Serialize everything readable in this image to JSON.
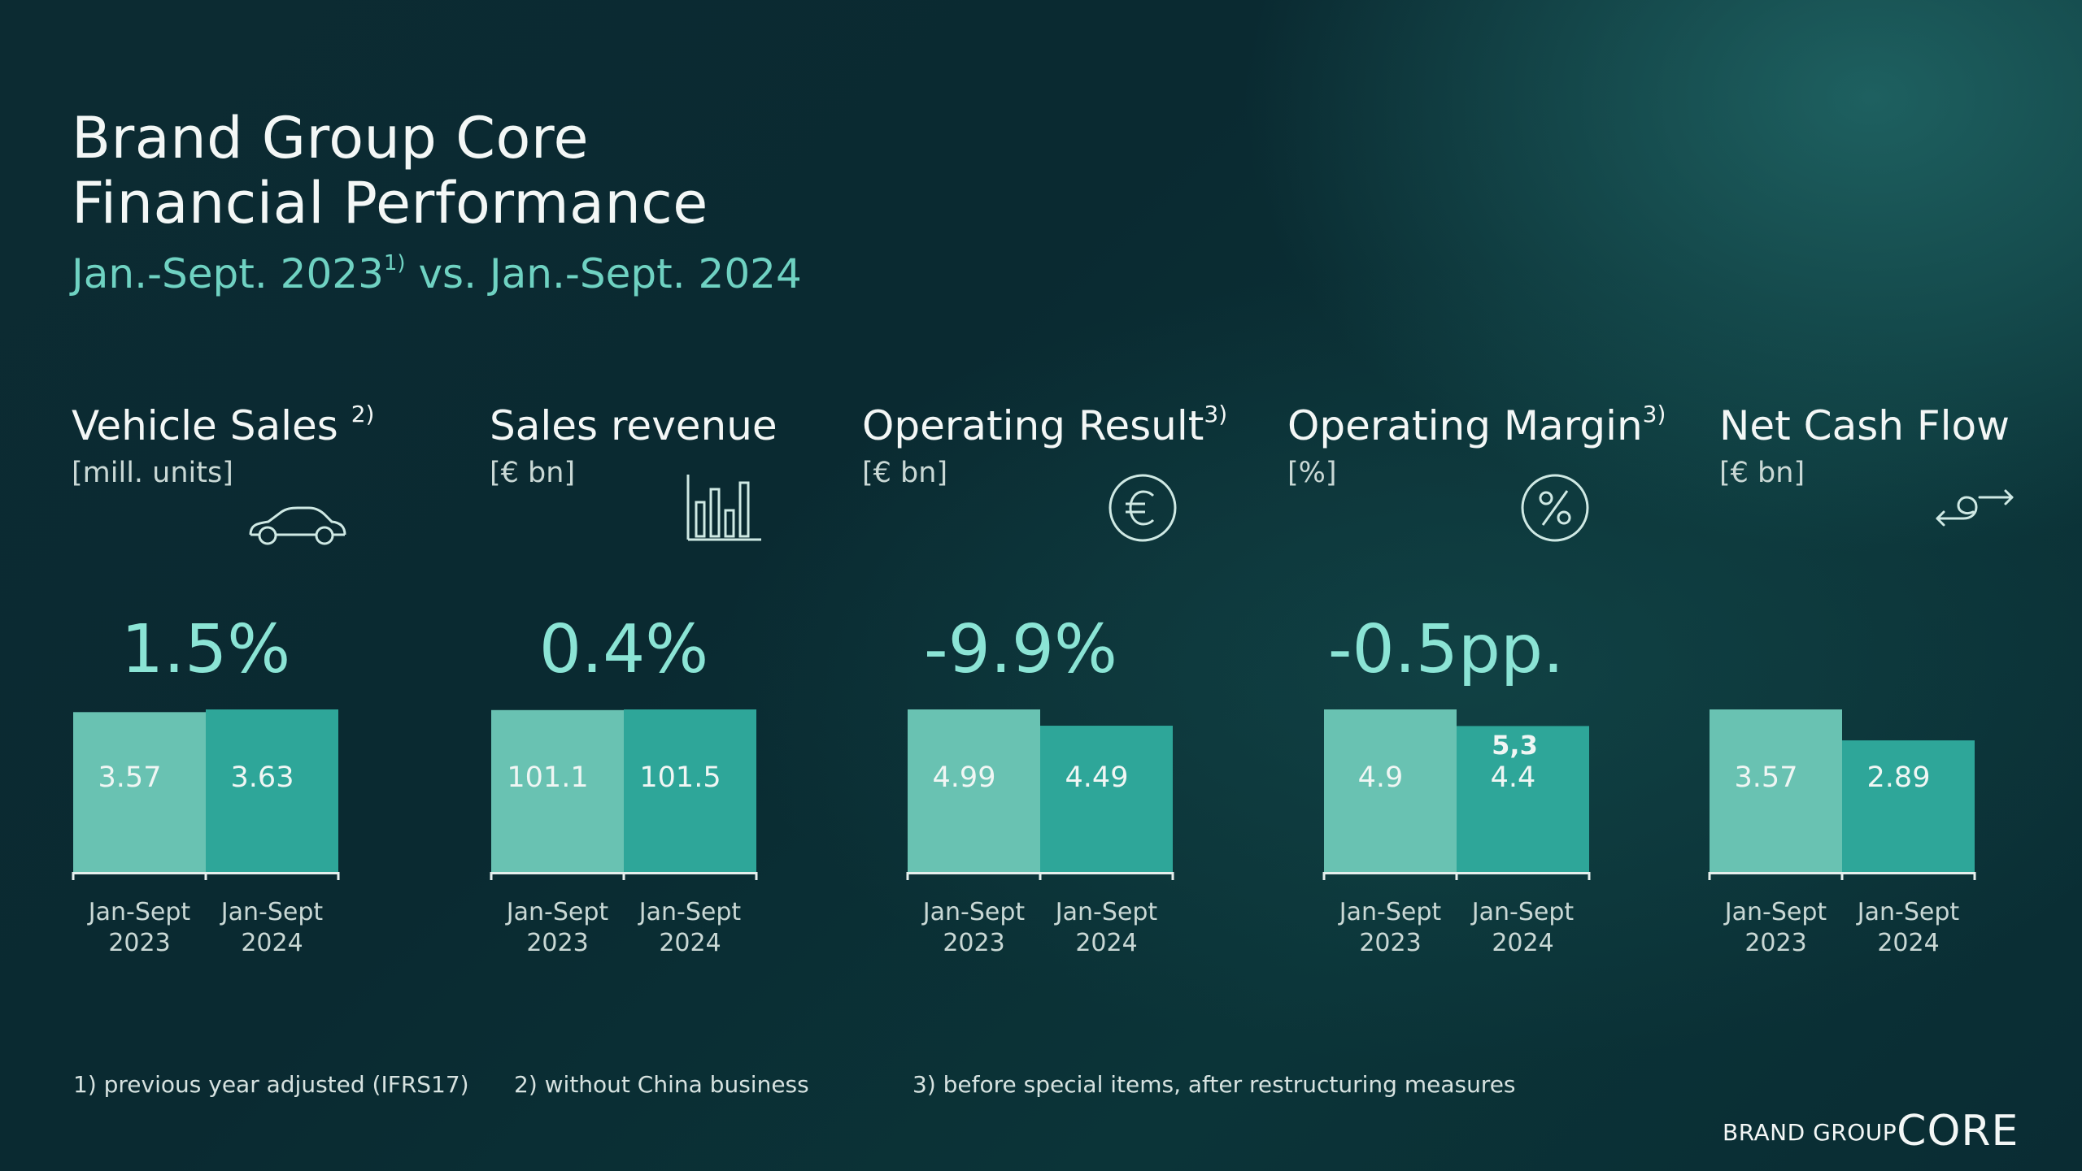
{
  "title": {
    "line1": "Brand Group Core",
    "line2": "Financial Performance",
    "period_a": "Jan.-Sept. 2023",
    "period_a_note": "1)",
    "period_b": " vs. Jan.-Sept. 2024"
  },
  "colors": {
    "bar_2023": "#69c2b2",
    "bar_2024": "#2ea699",
    "accent": "#8be4d5",
    "icon": "#cfe9e4"
  },
  "chart_data": [
    {
      "type": "bar",
      "title": "Vehicle Sales",
      "title_note": "2)",
      "unit": "[mill. units]",
      "icon": "car-icon",
      "change": "1.5%",
      "categories": [
        [
          "Jan-Sept",
          "2023"
        ],
        [
          "Jan-Sept",
          "2024"
        ]
      ],
      "values": [
        3.57,
        3.63
      ],
      "labels": [
        "3.57",
        "3.63"
      ]
    },
    {
      "type": "bar",
      "title": "Sales revenue",
      "title_note": "",
      "unit": "[€ bn]",
      "icon": "bar-chart-icon",
      "change": "0.4%",
      "categories": [
        [
          "Jan-Sept",
          "2023"
        ],
        [
          "Jan-Sept",
          "2024"
        ]
      ],
      "values": [
        101.1,
        101.5
      ],
      "labels": [
        "101.1",
        "101.5"
      ]
    },
    {
      "type": "bar",
      "title": "Operating Result",
      "title_note": "3)",
      "unit": "[€ bn]",
      "icon": "euro-icon",
      "change": "-9.9%",
      "categories": [
        [
          "Jan-Sept",
          "2023"
        ],
        [
          "Jan-Sept",
          "2024"
        ]
      ],
      "values": [
        4.99,
        4.49
      ],
      "labels": [
        "4.99",
        "4.49"
      ]
    },
    {
      "type": "bar",
      "title": "Operating Margin",
      "title_note": "3)",
      "unit": "[%]",
      "icon": "percent-icon",
      "change": "-0.5pp.",
      "categories": [
        [
          "Jan-Sept",
          "2023"
        ],
        [
          "Jan-Sept",
          "2024"
        ]
      ],
      "values": [
        4.9,
        4.4
      ],
      "labels": [
        "4.9",
        "4.4"
      ],
      "extra_label": "5,3"
    },
    {
      "type": "bar",
      "title": "Net Cash Flow",
      "title_note": "",
      "unit": "[€ bn]",
      "icon": "cash-flow-icon",
      "change": "",
      "categories": [
        [
          "Jan-Sept",
          "2023"
        ],
        [
          "Jan-Sept",
          "2024"
        ]
      ],
      "values": [
        3.57,
        2.89
      ],
      "labels": [
        "3.57",
        "2.89"
      ]
    }
  ],
  "footnotes": [
    "1) previous year adjusted (IFRS17)",
    "2) without China business",
    "3) before special items, after restructuring measures"
  ],
  "logo": {
    "small": "BRAND GROUP",
    "big": "CORE"
  }
}
